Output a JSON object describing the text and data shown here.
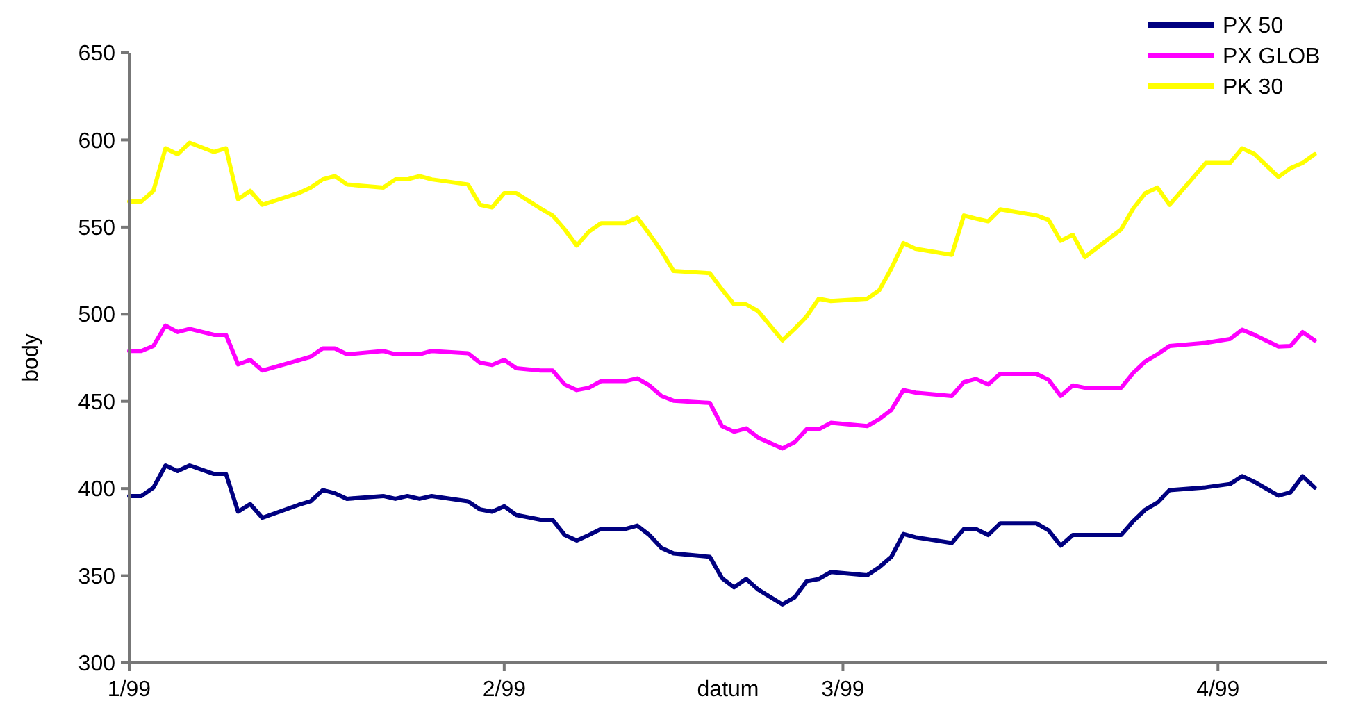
{
  "chart_data": {
    "type": "line",
    "xlabel": "datum",
    "ylabel": "body",
    "x": [
      "1999-01-01",
      "1999-01-02",
      "1999-01-03",
      "1999-01-04",
      "1999-01-05",
      "1999-01-06",
      "1999-01-08",
      "1999-01-09",
      "1999-01-10",
      "1999-01-11",
      "1999-01-12",
      "1999-01-15",
      "1999-01-16",
      "1999-01-17",
      "1999-01-18",
      "1999-01-19",
      "1999-01-22",
      "1999-01-23",
      "1999-01-24",
      "1999-01-25",
      "1999-01-26",
      "1999-01-29",
      "1999-01-30",
      "1999-01-31",
      "1999-02-01",
      "1999-02-02",
      "1999-02-04",
      "1999-02-05",
      "1999-02-06",
      "1999-02-07",
      "1999-02-08",
      "1999-02-09",
      "1999-02-11",
      "1999-02-12",
      "1999-02-13",
      "1999-02-14",
      "1999-02-15",
      "1999-02-18",
      "1999-02-19",
      "1999-02-20",
      "1999-02-21",
      "1999-02-22",
      "1999-02-24",
      "1999-02-25",
      "1999-02-26",
      "1999-02-27",
      "1999-02-28",
      "1999-03-03",
      "1999-03-04",
      "1999-03-05",
      "1999-03-06",
      "1999-03-07",
      "1999-03-10",
      "1999-03-11",
      "1999-03-12",
      "1999-03-13",
      "1999-03-14",
      "1999-03-17",
      "1999-03-18",
      "1999-03-19",
      "1999-03-20",
      "1999-03-21",
      "1999-03-24",
      "1999-03-25",
      "1999-03-26",
      "1999-03-27",
      "1999-03-28",
      "1999-03-31",
      "1999-04-02",
      "1999-04-03",
      "1999-04-04",
      "1999-04-06",
      "1999-04-07",
      "1999-04-08",
      "1999-04-09"
    ],
    "series": [
      {
        "name": "PX 50",
        "color": "#000080",
        "values": [
          395.7,
          395.7,
          400.5,
          413.2,
          410,
          413.2,
          408.4,
          408.4,
          386.7,
          391.1,
          383.2,
          390.6,
          392.7,
          399.1,
          397.3,
          394.1,
          395.7,
          394.1,
          395.7,
          394.1,
          395.7,
          392.7,
          388,
          386.7,
          389.8,
          384.8,
          382.1,
          382.1,
          373.3,
          370.2,
          373.3,
          376.8,
          376.8,
          378.7,
          373.3,
          365.9,
          362.8,
          360.8,
          348.6,
          343.3,
          348.1,
          342,
          333.5,
          337.5,
          346.8,
          348.1,
          352.1,
          350.2,
          354.8,
          360.8,
          373.9,
          372,
          368.8,
          376.8,
          376.8,
          373.3,
          380,
          380,
          376,
          367.2,
          373.3,
          373.3,
          373.3,
          381.3,
          387.9,
          391.9,
          399.1,
          400.7,
          402.6,
          407.1,
          403.9,
          395.9,
          397.8,
          407.1,
          400.5
        ]
      },
      {
        "name": "PX GLOB",
        "color": "#ff00ff",
        "values": [
          478.9,
          478.9,
          481.8,
          493.5,
          489.8,
          491.6,
          488.2,
          488.2,
          471.2,
          473.8,
          467.7,
          473.6,
          475.6,
          480.4,
          480.4,
          477,
          478.9,
          477,
          477,
          477,
          478.9,
          477.6,
          472.2,
          470.9,
          473.8,
          469,
          467.7,
          467.7,
          459.7,
          456.5,
          457.8,
          461.6,
          461.6,
          463.2,
          459.2,
          453.1,
          450.4,
          449.1,
          435.8,
          432.6,
          434.5,
          429.2,
          423,
          426.5,
          434,
          434,
          437.7,
          435.8,
          439.8,
          445.1,
          456.5,
          455,
          453.1,
          461.1,
          462.9,
          459.7,
          465.8,
          465.8,
          462.4,
          453.1,
          459.2,
          457.8,
          457.8,
          466.4,
          472.9,
          477,
          481.8,
          483.6,
          485.8,
          491.1,
          488.2,
          481.5,
          481.8,
          489.8,
          485
        ]
      },
      {
        "name": "PK 30",
        "color": "#ffff00",
        "values": [
          564.7,
          564.7,
          570.8,
          595.2,
          591.8,
          598.4,
          593.1,
          595.2,
          566,
          570.8,
          562.8,
          569.5,
          572.7,
          577.4,
          579.3,
          574.5,
          572.7,
          577.4,
          577.4,
          579.3,
          577.4,
          574.5,
          562.8,
          561.3,
          569.5,
          569.5,
          560.7,
          556.7,
          548.7,
          539.4,
          547.4,
          552.2,
          552.2,
          555.4,
          546.1,
          536.2,
          524.8,
          523.5,
          514.2,
          505.7,
          505.7,
          501.7,
          485,
          491.6,
          498.8,
          508.9,
          507.6,
          508.9,
          513.7,
          526.2,
          540.8,
          537.6,
          534.1,
          556.7,
          554.9,
          553.3,
          560.2,
          556.7,
          554.1,
          542.1,
          545.6,
          532.8,
          548.7,
          560.7,
          569.5,
          572.7,
          562.8,
          586.8,
          586.8,
          595.2,
          592,
          578.8,
          583.8,
          586.8,
          591.8
        ]
      }
    ],
    "xlim": [
      "1999-01-01",
      "1999-04-10"
    ],
    "xticks": [
      {
        "value": "1999-01-01",
        "label": "1/99"
      },
      {
        "value": "1999-02-01",
        "label": "2/99"
      },
      {
        "value": "1999-03-01",
        "label": "3/99"
      },
      {
        "value": "1999-04-01",
        "label": "4/99"
      }
    ],
    "ylim": [
      300,
      650
    ],
    "yticks": [
      300,
      350,
      400,
      450,
      500,
      550,
      600,
      650
    ],
    "grid": false,
    "legend": "top right",
    "marker": "none",
    "line_style": "solid"
  }
}
